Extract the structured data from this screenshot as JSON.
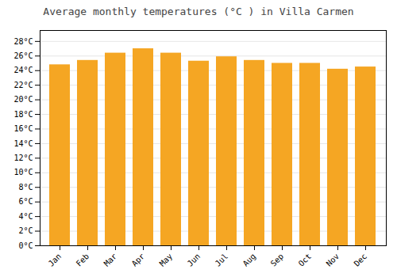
{
  "chart_data": {
    "type": "bar",
    "title": "Average monthly temperatures (°C ) in Villa Carmen",
    "categories": [
      "Jan",
      "Feb",
      "Mar",
      "Apr",
      "May",
      "Jun",
      "Jul",
      "Aug",
      "Sep",
      "Oct",
      "Nov",
      "Dec"
    ],
    "values": [
      24.8,
      25.4,
      26.4,
      27.0,
      26.4,
      25.3,
      25.9,
      25.4,
      25.0,
      25.0,
      24.2,
      24.5
    ],
    "color": "#F5A623",
    "ylim": [
      0,
      29.5
    ],
    "yticks": [
      {
        "value": 0,
        "label": "0°C"
      },
      {
        "value": 2,
        "label": "2°C"
      },
      {
        "value": 4,
        "label": "4°C"
      },
      {
        "value": 6,
        "label": "6°C"
      },
      {
        "value": 8,
        "label": "8°C"
      },
      {
        "value": 10,
        "label": "10°C"
      },
      {
        "value": 12,
        "label": "12°C"
      },
      {
        "value": 14,
        "label": "14°C"
      },
      {
        "value": 16,
        "label": "16°C"
      },
      {
        "value": 18,
        "label": "18°C"
      },
      {
        "value": 20,
        "label": "20°C"
      },
      {
        "value": 22,
        "label": "22°C"
      },
      {
        "value": 24,
        "label": "24°C"
      },
      {
        "value": 26,
        "label": "26°C"
      },
      {
        "value": 28,
        "label": "28°C"
      }
    ],
    "grid": true
  }
}
